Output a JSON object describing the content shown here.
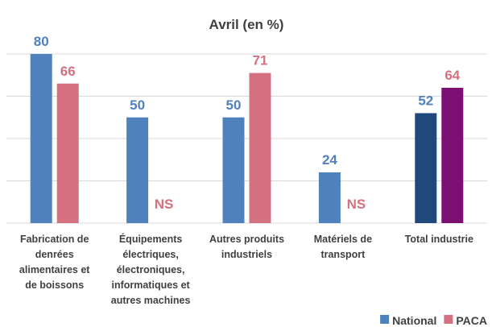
{
  "chart_data": {
    "type": "bar",
    "title": "Avril (en %)",
    "categories": [
      [
        "Fabrication de",
        "denrées",
        "alimentaires et",
        "de boissons"
      ],
      [
        "Équipements",
        "électriques,",
        "électroniques,",
        "informatiques et",
        "autres machines"
      ],
      [
        "Autres produits",
        "industriels"
      ],
      [
        "Matériels de",
        "transport"
      ],
      [
        "Total industrie"
      ]
    ],
    "series": [
      {
        "name": "National",
        "color": "#4f81bd",
        "colors": [
          "#4f81bd",
          "#4f81bd",
          "#4f81bd",
          "#4f81bd",
          "#1f497d"
        ],
        "values": [
          80,
          50,
          50,
          24,
          52
        ]
      },
      {
        "name": "PACA",
        "color": "#d4707f",
        "colors": [
          "#d4707f",
          "#d4707f",
          "#d4707f",
          "#d4707f",
          "#7b1072"
        ],
        "values": [
          66,
          null,
          71,
          null,
          64
        ],
        "value_labels": [
          "66",
          "NS",
          "71",
          "NS",
          "64"
        ]
      }
    ],
    "ylim": [
      0,
      80
    ],
    "yticks": [
      0,
      20,
      40,
      60,
      80
    ],
    "grid": true,
    "legend": "bottom-right"
  }
}
